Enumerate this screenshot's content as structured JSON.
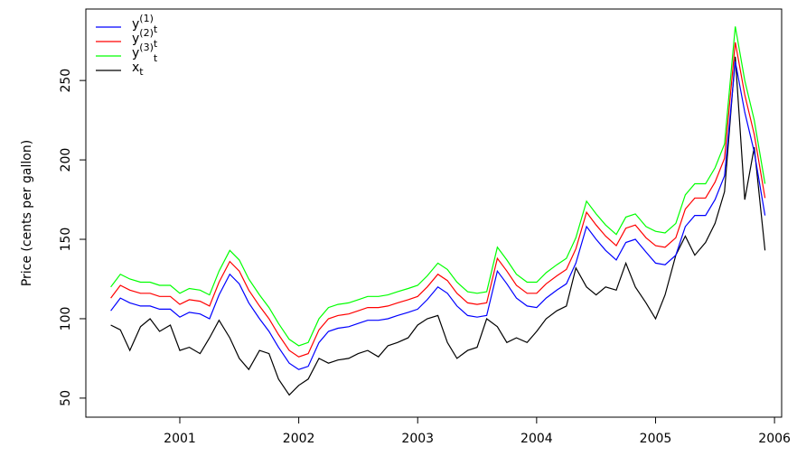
{
  "chart_data": {
    "type": "line",
    "y_label": "Price (cents per gallon)",
    "x": [
      2000.42,
      2000.5,
      2000.58,
      2000.67,
      2000.75,
      2000.83,
      2000.92,
      2001.0,
      2001.08,
      2001.17,
      2001.25,
      2001.33,
      2001.42,
      2001.5,
      2001.58,
      2001.67,
      2001.75,
      2001.83,
      2001.92,
      2002.0,
      2002.08,
      2002.17,
      2002.25,
      2002.33,
      2002.42,
      2002.5,
      2002.58,
      2002.67,
      2002.75,
      2002.83,
      2002.92,
      2003.0,
      2003.08,
      2003.17,
      2003.25,
      2003.33,
      2003.42,
      2003.5,
      2003.58,
      2003.67,
      2003.75,
      2003.83,
      2003.92,
      2004.0,
      2004.08,
      2004.17,
      2004.25,
      2004.33,
      2004.42,
      2004.5,
      2004.58,
      2004.67,
      2004.75,
      2004.83,
      2004.92,
      2005.0,
      2005.08,
      2005.17,
      2005.25,
      2005.33,
      2005.42,
      2005.5,
      2005.58,
      2005.67,
      2005.75,
      2005.83,
      2005.92
    ],
    "series": [
      {
        "name": "y(1)t",
        "color": "#0000ff",
        "values": [
          105,
          113,
          110,
          108,
          108,
          106,
          106,
          101,
          104,
          103,
          100,
          115,
          128,
          122,
          110,
          100,
          92,
          82,
          72,
          68,
          70,
          85,
          92,
          94,
          95,
          97,
          99,
          99,
          100,
          102,
          104,
          106,
          112,
          120,
          116,
          108,
          102,
          101,
          102,
          130,
          122,
          113,
          108,
          107,
          113,
          118,
          122,
          135,
          158,
          150,
          143,
          137,
          148,
          150,
          142,
          135,
          134,
          140,
          158,
          165,
          165,
          175,
          190,
          262,
          230,
          205,
          165
        ]
      },
      {
        "name": "y(2)t",
        "color": "#ff0000",
        "values": [
          113,
          121,
          118,
          116,
          116,
          114,
          114,
          109,
          112,
          111,
          108,
          123,
          136,
          130,
          118,
          108,
          100,
          90,
          80,
          76,
          78,
          93,
          100,
          102,
          103,
          105,
          107,
          107,
          108,
          110,
          112,
          114,
          120,
          128,
          124,
          116,
          110,
          109,
          110,
          138,
          130,
          121,
          116,
          116,
          122,
          127,
          131,
          144,
          167,
          159,
          152,
          146,
          157,
          159,
          151,
          146,
          145,
          151,
          169,
          176,
          176,
          186,
          201,
          274,
          241,
          216,
          176
        ]
      },
      {
        "name": "y(3)t",
        "color": "#00ff00",
        "values": [
          120,
          128,
          125,
          123,
          123,
          121,
          121,
          116,
          119,
          118,
          115,
          130,
          143,
          137,
          125,
          115,
          107,
          97,
          87,
          83,
          85,
          100,
          107,
          109,
          110,
          112,
          114,
          114,
          115,
          117,
          119,
          121,
          127,
          135,
          131,
          123,
          117,
          116,
          117,
          145,
          137,
          128,
          123,
          123,
          129,
          134,
          138,
          151,
          174,
          166,
          159,
          153,
          164,
          166,
          158,
          155,
          154,
          160,
          178,
          185,
          185,
          195,
          210,
          284,
          250,
          225,
          185
        ]
      },
      {
        "name": "xt",
        "color": "#000000",
        "values": [
          96,
          93,
          80,
          95,
          100,
          92,
          96,
          80,
          82,
          78,
          88,
          99,
          88,
          75,
          68,
          80,
          78,
          62,
          52,
          58,
          62,
          75,
          72,
          74,
          75,
          78,
          80,
          76,
          83,
          85,
          88,
          96,
          100,
          102,
          85,
          75,
          80,
          82,
          100,
          95,
          85,
          88,
          85,
          92,
          100,
          105,
          108,
          132,
          120,
          115,
          120,
          118,
          135,
          120,
          110,
          100,
          115,
          140,
          152,
          140,
          148,
          160,
          180,
          265,
          175,
          208,
          143
        ]
      }
    ],
    "xlim": [
      2000.21,
      2006.06
    ],
    "xticks": [
      2001,
      2002,
      2003,
      2004,
      2005,
      2006
    ],
    "ylim": [
      38,
      295
    ],
    "yticks": [
      50,
      100,
      150,
      200,
      250
    ]
  }
}
